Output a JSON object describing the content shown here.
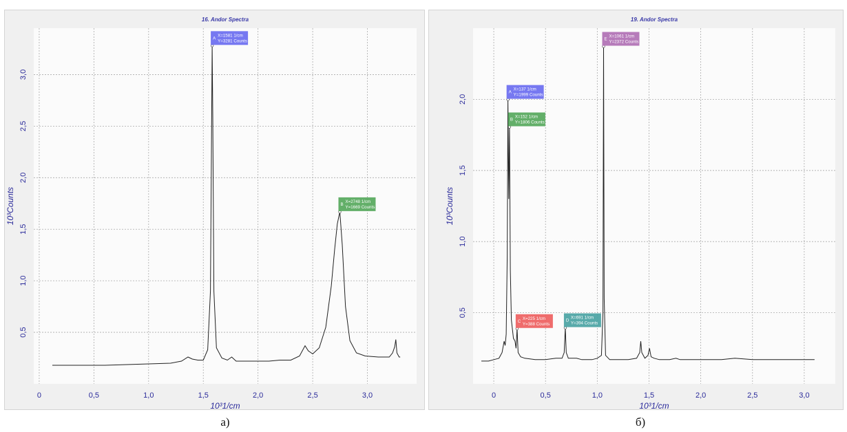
{
  "chart_data": [
    {
      "type": "line",
      "title": "16. Andor Spectra",
      "xlabel": "10³1/cm",
      "ylabel": "10³Counts",
      "xlim": [
        -0.05,
        3.45
      ],
      "ylim": [
        0,
        3.45
      ],
      "x_ticks": [
        "0",
        "0,5",
        "1,0",
        "1,5",
        "2,0",
        "2,5",
        "3,0"
      ],
      "y_ticks": [
        "0,5",
        "1,0",
        "1,5",
        "2,0",
        "2,5",
        "3,0"
      ],
      "grid": true,
      "series": [
        {
          "x": [
            0.12,
            0.3,
            0.6,
            0.9,
            1.2,
            1.3,
            1.36,
            1.4,
            1.45,
            1.5,
            1.54,
            1.565,
            1.575,
            1.581,
            1.587,
            1.597,
            1.62,
            1.67,
            1.72,
            1.76,
            1.8,
            1.9,
            2.0,
            2.1,
            2.2,
            2.3,
            2.38,
            2.43,
            2.46,
            2.5,
            2.56,
            2.62,
            2.67,
            2.7,
            2.725,
            2.748,
            2.77,
            2.8,
            2.84,
            2.9,
            2.98,
            3.1,
            3.2,
            3.23,
            3.25,
            3.26,
            3.27,
            3.29,
            3.3
          ],
          "y": [
            0.18,
            0.18,
            0.18,
            0.19,
            0.2,
            0.22,
            0.26,
            0.24,
            0.23,
            0.23,
            0.33,
            0.9,
            2.3,
            3.281,
            2.6,
            0.9,
            0.35,
            0.25,
            0.23,
            0.26,
            0.22,
            0.22,
            0.22,
            0.22,
            0.23,
            0.23,
            0.27,
            0.37,
            0.32,
            0.29,
            0.35,
            0.55,
            0.95,
            1.3,
            1.55,
            1.669,
            1.35,
            0.75,
            0.42,
            0.3,
            0.27,
            0.26,
            0.26,
            0.3,
            0.36,
            0.43,
            0.3,
            0.26,
            0.26
          ]
        }
      ],
      "markers": [
        {
          "letter": "A",
          "text": "X=1581 1/cm",
          "text2": "Y=3281 Counts",
          "x": 1.581,
          "y": 3.281,
          "color": "#6a6cf0"
        },
        {
          "letter": "B",
          "text": "X=2748 1/cm",
          "text2": "Y=1669 Counts",
          "x": 2.748,
          "y": 1.669,
          "color": "#56a85c"
        }
      ],
      "caption": "а)"
    },
    {
      "type": "line",
      "title": "19. Andor Spectra",
      "xlabel": "10³1/cm",
      "ylabel": "10³Counts",
      "xlim": [
        -0.2,
        3.3
      ],
      "ylim": [
        0,
        2.5
      ],
      "x_ticks": [
        "0",
        "0,5",
        "1,0",
        "1,5",
        "2,0",
        "2,5",
        "3,0"
      ],
      "y_ticks": [
        "0,5",
        "1,0",
        "1,5",
        "2,0"
      ],
      "grid": true,
      "series": [
        {
          "x": [
            -0.12,
            -0.05,
            0.0,
            0.05,
            0.08,
            0.1,
            0.11,
            0.12,
            0.13,
            0.137,
            0.145,
            0.152,
            0.16,
            0.17,
            0.19,
            0.205,
            0.215,
            0.225,
            0.235,
            0.26,
            0.3,
            0.4,
            0.5,
            0.6,
            0.66,
            0.68,
            0.691,
            0.7,
            0.72,
            0.76,
            0.8,
            0.85,
            0.9,
            0.95,
            1.0,
            1.04,
            1.055,
            1.061,
            1.067,
            1.08,
            1.12,
            1.2,
            1.3,
            1.38,
            1.41,
            1.42,
            1.43,
            1.46,
            1.49,
            1.505,
            1.52,
            1.55,
            1.6,
            1.7,
            1.76,
            1.8,
            2.0,
            2.2,
            2.33,
            2.5,
            2.8,
            3.1
          ],
          "y": [
            0.16,
            0.16,
            0.17,
            0.18,
            0.22,
            0.3,
            0.27,
            0.35,
            0.9,
            1.999,
            1.3,
            1.806,
            0.8,
            0.45,
            0.32,
            0.3,
            0.25,
            0.388,
            0.22,
            0.19,
            0.18,
            0.17,
            0.17,
            0.18,
            0.18,
            0.22,
            0.394,
            0.22,
            0.18,
            0.18,
            0.18,
            0.17,
            0.17,
            0.17,
            0.18,
            0.2,
            0.5,
            2.372,
            0.6,
            0.2,
            0.17,
            0.17,
            0.17,
            0.18,
            0.22,
            0.3,
            0.22,
            0.18,
            0.2,
            0.25,
            0.19,
            0.18,
            0.17,
            0.17,
            0.18,
            0.17,
            0.17,
            0.17,
            0.18,
            0.17,
            0.17,
            0.17
          ]
        }
      ],
      "markers": [
        {
          "letter": "A",
          "text": "X=137 1/cm",
          "text2": "Y=1999 Counts",
          "x": 0.137,
          "y": 1.999,
          "color": "#6a6cf0"
        },
        {
          "letter": "B",
          "text": "X=152 1/cm",
          "text2": "Y=1806 Counts",
          "x": 0.152,
          "y": 1.806,
          "color": "#56a85c"
        },
        {
          "letter": "C",
          "text": "X=225 1/cm",
          "text2": "Y=388 Counts",
          "x": 0.225,
          "y": 0.388,
          "color": "#ee5f5f"
        },
        {
          "letter": "D",
          "text": "X=691 1/cm",
          "text2": "Y=394 Counts",
          "x": 0.691,
          "y": 0.394,
          "color": "#4aa3a3"
        },
        {
          "letter": "E",
          "text": "X=1061 1/cm",
          "text2": "Y=2372 Counts",
          "x": 1.061,
          "y": 2.372,
          "color": "#b070b4"
        }
      ],
      "caption": "б)"
    }
  ]
}
